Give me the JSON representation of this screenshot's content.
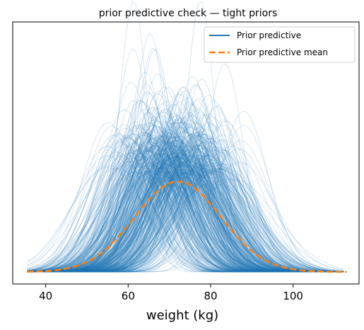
{
  "chart_data": {
    "type": "line",
    "title": "prior predictive check — tight priors",
    "xlabel": "weight (kg)",
    "ylabel": "",
    "xlim": [
      32,
      116
    ],
    "xticks": [
      40,
      60,
      80,
      100
    ],
    "yticks": [],
    "grid": false,
    "legend": {
      "placement": "top-right",
      "entries": [
        "Prior predictive",
        "Prior predictive mean"
      ]
    },
    "colors": {
      "predictive": "#1f77b4",
      "mean": "#ff7f0e"
    },
    "series": [
      {
        "name": "Prior predictive",
        "kind": "ensemble of normal density curves",
        "x_range": [
          35.5,
          113
        ],
        "center_range": [
          55,
          88
        ],
        "sd_range": [
          3.5,
          11
        ],
        "max_peak_density": 0.1
      },
      {
        "name": "Prior predictive mean",
        "kind": "normal density",
        "x_range": [
          35.5,
          113
        ],
        "center": 72,
        "sd": 10.5,
        "peak_density": 0.038
      }
    ]
  }
}
